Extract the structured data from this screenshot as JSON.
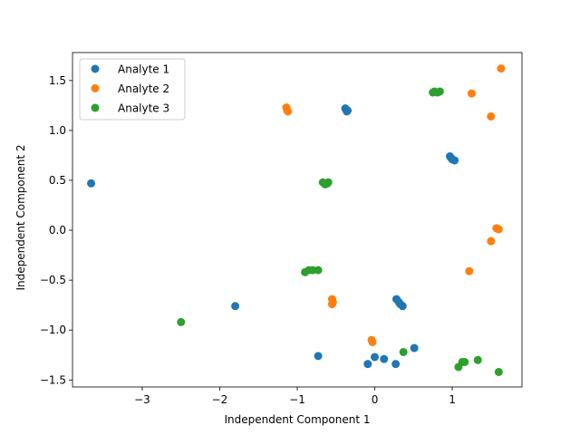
{
  "chart_data": {
    "type": "scatter",
    "title": "",
    "xlabel": "Independent Component 1",
    "ylabel": "Independent Component 2",
    "xlim": [
      -3.9,
      1.9
    ],
    "ylim": [
      -1.57,
      1.78
    ],
    "xticks": [
      -3,
      -2,
      -1,
      0,
      1
    ],
    "yticks": [
      -1.5,
      -1.0,
      -0.5,
      0.0,
      0.5,
      1.0,
      1.5
    ],
    "xtick_labels": [
      "−3",
      "−2",
      "−1",
      "0",
      "1"
    ],
    "ytick_labels": [
      "−1.5",
      "−1.0",
      "−0.5",
      "0.0",
      "0.5",
      "1.0",
      "1.5"
    ],
    "grid": false,
    "legend_position": "top-left",
    "series": [
      {
        "name": "Analyte 1",
        "color": "#1f77b4",
        "points": [
          [
            -3.66,
            0.47
          ],
          [
            -1.8,
            -0.76
          ],
          [
            -0.73,
            -1.26
          ],
          [
            -0.38,
            1.22
          ],
          [
            -0.36,
            1.19
          ],
          [
            -0.35,
            1.2
          ],
          [
            0.28,
            -0.69
          ],
          [
            0.31,
            -0.72
          ],
          [
            0.33,
            -0.74
          ],
          [
            0.36,
            -0.76
          ],
          [
            -0.09,
            -1.34
          ],
          [
            0.0,
            -1.27
          ],
          [
            0.12,
            -1.29
          ],
          [
            0.27,
            -1.34
          ],
          [
            0.51,
            -1.18
          ],
          [
            0.97,
            0.74
          ],
          [
            0.99,
            0.72
          ],
          [
            1.0,
            0.71
          ],
          [
            1.03,
            0.7
          ]
        ]
      },
      {
        "name": "Analyte 2",
        "color": "#ff7f0e",
        "points": [
          [
            -1.14,
            1.23
          ],
          [
            -1.13,
            1.2
          ],
          [
            -1.12,
            1.19
          ],
          [
            -0.55,
            -0.69
          ],
          [
            -0.54,
            -0.72
          ],
          [
            -0.55,
            -0.74
          ],
          [
            -0.04,
            -1.1
          ],
          [
            -0.03,
            -1.12
          ],
          [
            1.22,
            -0.41
          ],
          [
            1.25,
            1.37
          ],
          [
            1.5,
            1.14
          ],
          [
            1.5,
            -0.11
          ],
          [
            1.57,
            0.02
          ],
          [
            1.6,
            0.01
          ],
          [
            1.63,
            1.62
          ]
        ]
      },
      {
        "name": "Analyte 3",
        "color": "#2ca02c",
        "points": [
          [
            -2.5,
            -0.92
          ],
          [
            -0.9,
            -0.42
          ],
          [
            -0.85,
            -0.4
          ],
          [
            -0.8,
            -0.4
          ],
          [
            -0.73,
            -0.4
          ],
          [
            -0.67,
            0.48
          ],
          [
            -0.64,
            0.46
          ],
          [
            -0.61,
            0.47
          ],
          [
            -0.6,
            0.48
          ],
          [
            0.37,
            -1.22
          ],
          [
            0.75,
            1.38
          ],
          [
            0.77,
            1.39
          ],
          [
            0.81,
            1.38
          ],
          [
            0.84,
            1.39
          ],
          [
            1.08,
            -1.37
          ],
          [
            1.13,
            -1.32
          ],
          [
            1.16,
            -1.32
          ],
          [
            1.33,
            -1.3
          ],
          [
            1.6,
            -1.42
          ]
        ]
      }
    ]
  }
}
